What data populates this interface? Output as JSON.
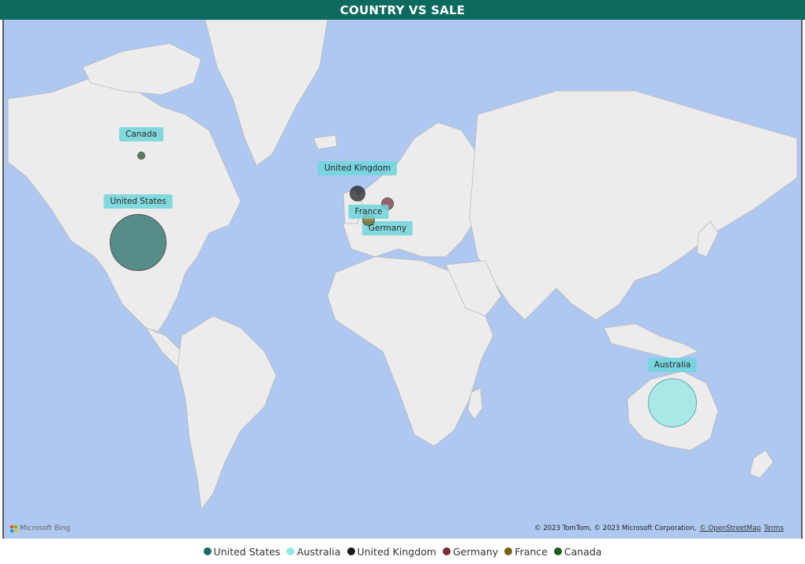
{
  "title": "COUNTRY VS SALE",
  "map": {
    "provider": "Microsoft Bing",
    "attribution": "© 2023 TomTom, © 2023 Microsoft Corporation,",
    "osm_link": "© OpenStreetMap",
    "terms_link": "Terms"
  },
  "legend": [
    {
      "name": "United States",
      "color": "#1c6b63"
    },
    {
      "name": "Australia",
      "color": "#8fe9e7"
    },
    {
      "name": "United Kingdom",
      "color": "#1a1a1a"
    },
    {
      "name": "Germany",
      "color": "#7a2e36"
    },
    {
      "name": "France",
      "color": "#7a6214"
    },
    {
      "name": "Canada",
      "color": "#1e5a1e"
    }
  ],
  "markers": [
    {
      "country": "United States",
      "label": "United States",
      "lon": -98,
      "lat": 39,
      "color": "#1c6b63",
      "size": 3
    },
    {
      "country": "Australia",
      "label": "Australia",
      "lon": 134,
      "lat": -25,
      "color": "#8fe9e7",
      "size": 2.6
    },
    {
      "country": "United Kingdom",
      "label": "United Kingdom",
      "lon": -2,
      "lat": 54,
      "color": "#1a1a1a",
      "size": 0.85
    },
    {
      "country": "Germany",
      "label": "Germany",
      "lon": 10,
      "lat": 51,
      "color": "#7a2e36",
      "size": 0.7
    },
    {
      "country": "France",
      "label": "France",
      "lon": 2,
      "lat": 46.5,
      "color": "#7a6214",
      "size": 0.65
    },
    {
      "country": "Canada",
      "label": "Canada",
      "lon": -79,
      "lat": 56,
      "color": "#1e5a1e",
      "size": 0.45
    }
  ]
}
